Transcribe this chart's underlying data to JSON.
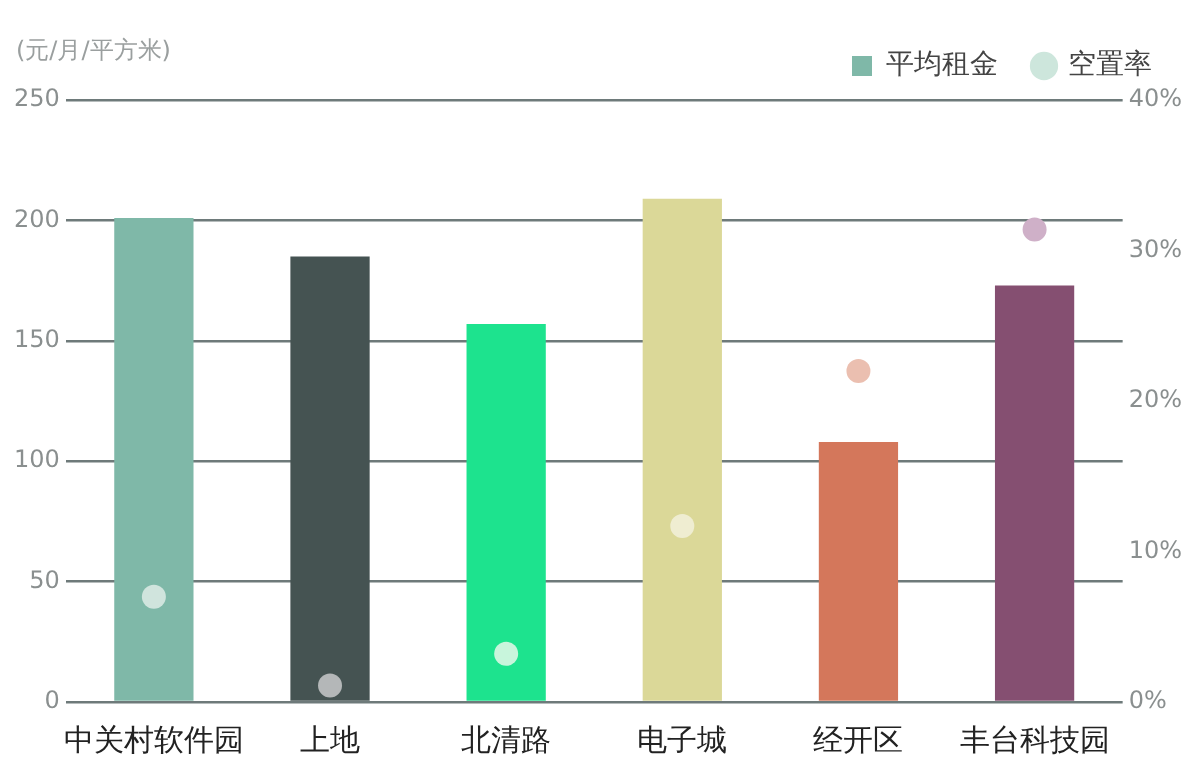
{
  "chart_data": {
    "type": "bar",
    "ylabel": "(元/月/平方米)",
    "categories": [
      "中关村软件园",
      "上地",
      "北清路",
      "电子城",
      "经开区",
      "丰台科技园"
    ],
    "series": [
      {
        "name": "平均租金",
        "type": "bar",
        "color": "#7fb8a8",
        "colors": [
          "#7fb8a8",
          "#455352",
          "#1de38e",
          "#dbd898",
          "#d4775b",
          "#854f71"
        ],
        "values": [
          201,
          185,
          157,
          209,
          108,
          173
        ]
      },
      {
        "name": "空置率",
        "type": "scatter",
        "axis": "y2",
        "color": "#cde6dc",
        "colors": [
          "#d0e4dd",
          "#b4b7b8",
          "#c8f5dc",
          "#efedd1",
          "#ebbfb0",
          "#cfb0c8"
        ],
        "values": [
          7.0,
          1.1,
          3.2,
          11.7,
          22.0,
          31.4
        ]
      }
    ],
    "ylim": [
      0,
      250
    ],
    "yticks": [
      0,
      50,
      100,
      150,
      200,
      250
    ],
    "y2lim": [
      0,
      40
    ],
    "y2ticks": [
      {
        "value": 0,
        "label": "0%"
      },
      {
        "value": 10,
        "label": "10%"
      },
      {
        "value": 20,
        "label": "20%"
      },
      {
        "value": 30,
        "label": "30%"
      },
      {
        "value": 40,
        "label": "40%"
      }
    ],
    "grid": "y",
    "legend": "top right"
  }
}
